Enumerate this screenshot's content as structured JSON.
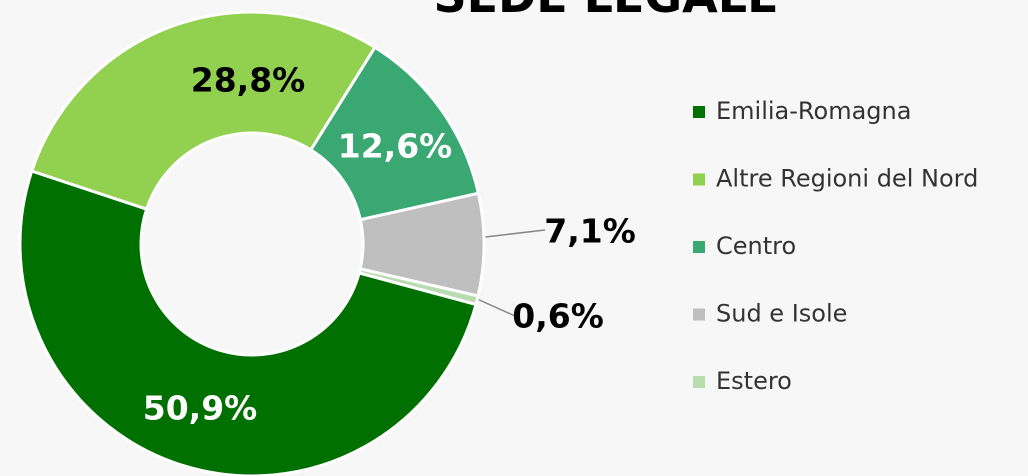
{
  "chart_data": {
    "type": "donut",
    "title": "SEDE LEGALE",
    "categories": [
      "Emilia-Romagna",
      "Altre Regioni del Nord",
      "Centro",
      "Sud e Isole",
      "Estero"
    ],
    "values": [
      50.9,
      28.8,
      12.6,
      7.1,
      0.6
    ],
    "value_labels": [
      "50,9%",
      "28,8%",
      "12,6%",
      "7,1%",
      "0,6%"
    ],
    "colors": [
      "#007000",
      "#92d050",
      "#3aa872",
      "#bfbfbf",
      "#b8dbb0"
    ],
    "legend": "right"
  }
}
